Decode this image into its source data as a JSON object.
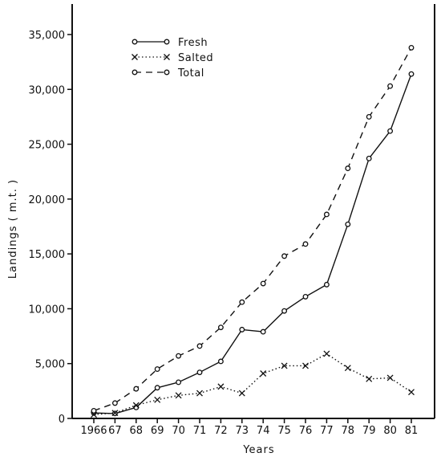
{
  "chart_data": {
    "type": "line",
    "xlabel": "Years",
    "ylabel": "Landings  ( m.t. )",
    "categories": [
      "1966",
      "67",
      "68",
      "69",
      "70",
      "71",
      "72",
      "73",
      "74",
      "75",
      "76",
      "77",
      "78",
      "79",
      "80",
      "81"
    ],
    "yticks": [
      "0",
      "5,000",
      "10,000",
      "15,000",
      "20,000",
      "25,000",
      "30,000",
      "35,000"
    ],
    "ylim": [
      0,
      37000
    ],
    "series": [
      {
        "name": "Fresh",
        "style": "solid-circle",
        "values": [
          500,
          450,
          1000,
          2800,
          3300,
          4200,
          5200,
          8100,
          7900,
          9800,
          11100,
          12200,
          17700,
          23700,
          26200,
          31400
        ]
      },
      {
        "name": "Salted",
        "style": "dotted-x",
        "values": [
          350,
          500,
          1200,
          1700,
          2100,
          2300,
          2900,
          2300,
          4100,
          4800,
          4800,
          5900,
          4600,
          3600,
          3700,
          2400
        ]
      },
      {
        "name": "Total",
        "style": "dashed-circle",
        "values": [
          700,
          1400,
          2700,
          4500,
          5700,
          6600,
          8300,
          10600,
          12300,
          14800,
          15900,
          18600,
          22800,
          27500,
          30300,
          33800
        ]
      }
    ],
    "legend": {
      "position": "top-left",
      "entries": [
        "Fresh",
        "Salted",
        "Total"
      ]
    }
  }
}
